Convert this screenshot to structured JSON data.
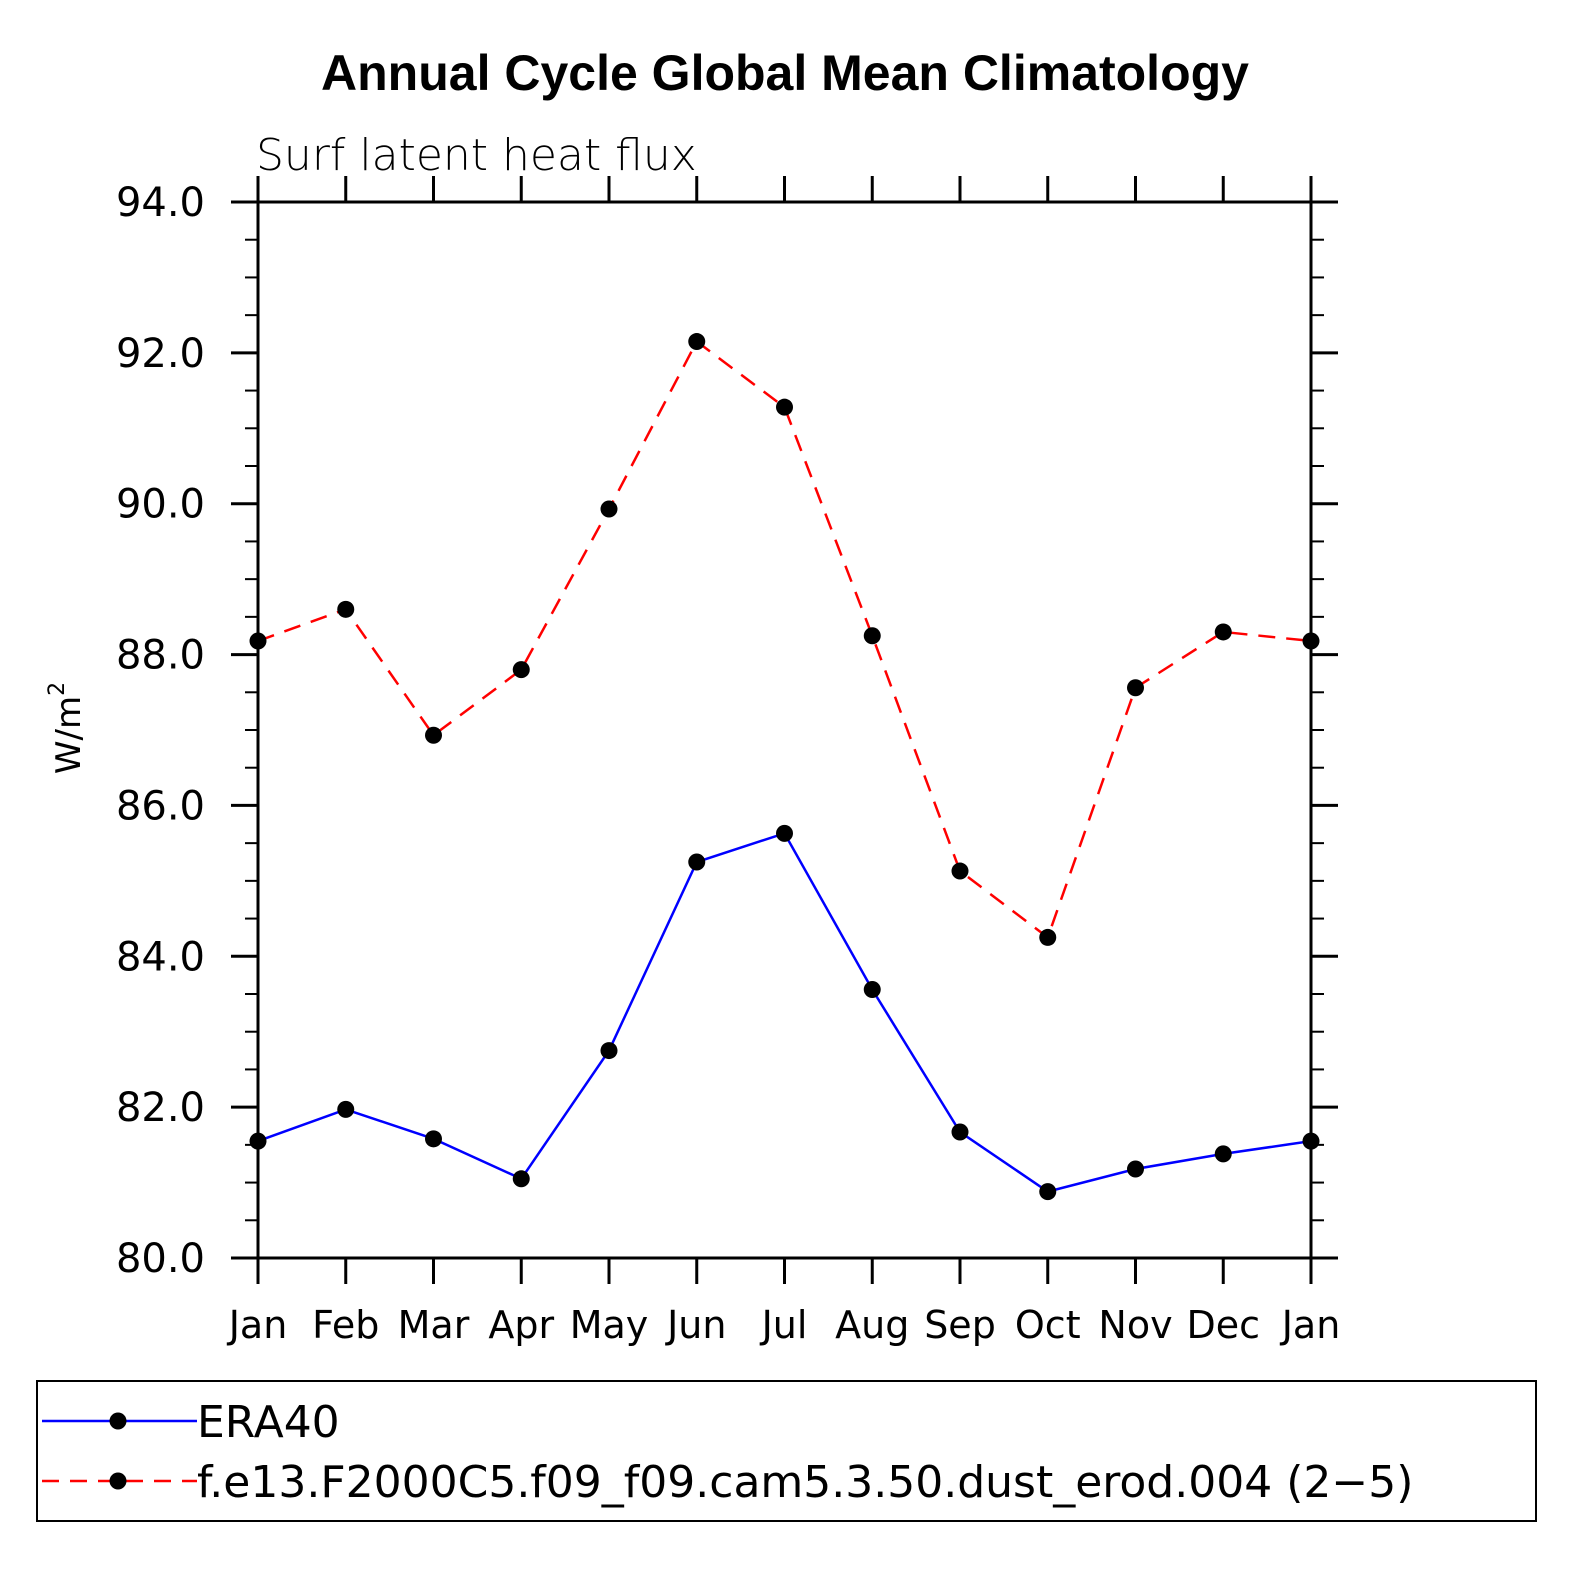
{
  "chart_data": {
    "type": "line",
    "title": "Annual Cycle Global Mean Climatology",
    "subtitle": "Surf latent heat flux",
    "ylabel": "W/m",
    "ylabel_sup": "2",
    "xlabel": "",
    "categories": [
      "Jan",
      "Feb",
      "Mar",
      "Apr",
      "May",
      "Jun",
      "Jul",
      "Aug",
      "Sep",
      "Oct",
      "Nov",
      "Dec",
      "Jan"
    ],
    "ylim": [
      80.0,
      94.0
    ],
    "yticks": [
      "80.0",
      "82.0",
      "84.0",
      "86.0",
      "88.0",
      "90.0",
      "92.0",
      "94.0"
    ],
    "grid": false,
    "legend_position": "bottom",
    "series": [
      {
        "name": "ERA40",
        "color": "#0000ff",
        "dash": "solid",
        "marker": "filled-circle",
        "values": [
          81.55,
          81.97,
          81.58,
          81.05,
          82.75,
          85.25,
          85.63,
          83.56,
          81.67,
          80.88,
          81.18,
          81.38,
          81.55
        ]
      },
      {
        "name": "f.e13.F2000C5.f09_f09.cam5.3.50.dust_erod.004 (2−5)",
        "color": "#ff0000",
        "dash": "dashed",
        "marker": "filled-circle",
        "values": [
          88.18,
          88.6,
          86.93,
          87.8,
          89.93,
          92.15,
          91.28,
          88.25,
          85.13,
          84.25,
          87.56,
          88.3,
          88.18
        ]
      }
    ]
  }
}
